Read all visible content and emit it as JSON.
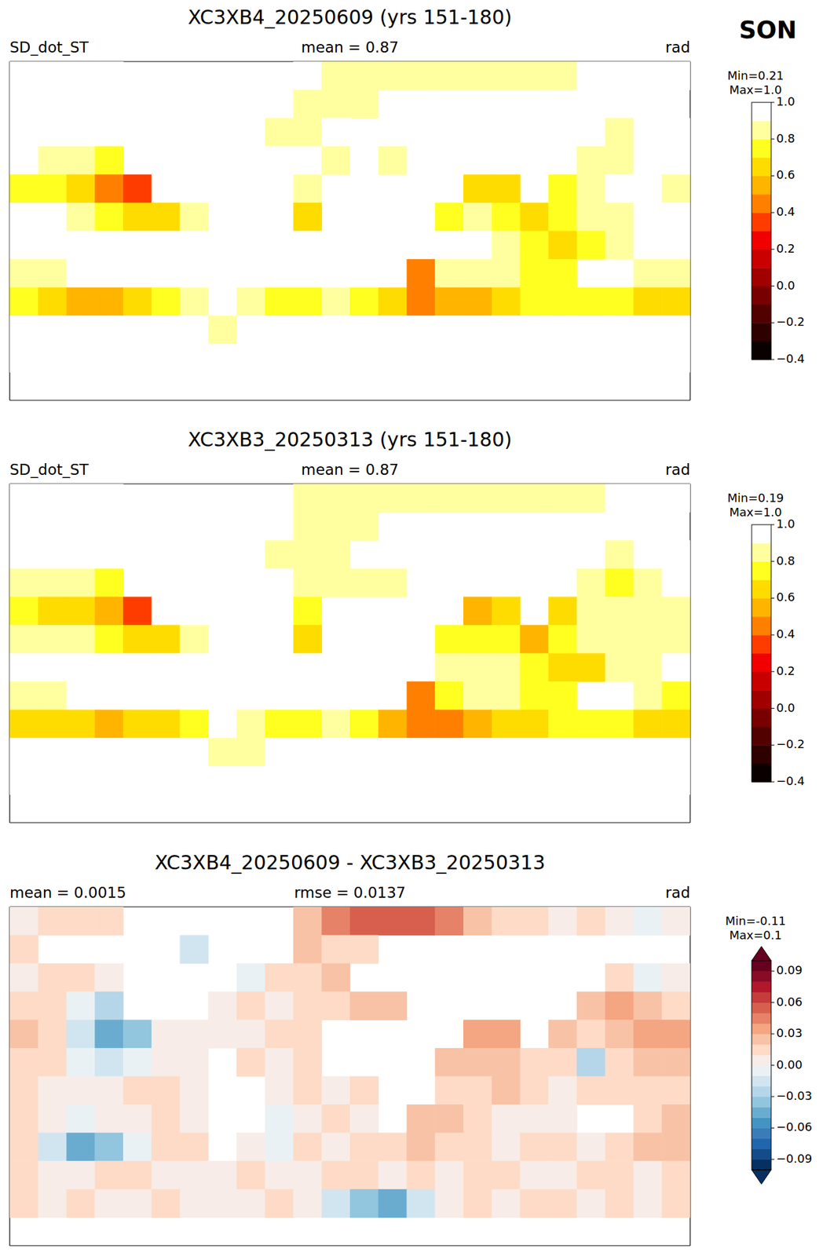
{
  "chart_data": [
    {
      "type": "heatmap",
      "annotation": "SON",
      "title": "XC3XB4_20250609 (yrs 151-180)",
      "subtitle_left": "SD_dot_ST",
      "subtitle_center": "mean = 0.87",
      "subtitle_right": "rad",
      "tick_labels": false,
      "xlim": [
        -180,
        180
      ],
      "ylim": [
        -90,
        90
      ],
      "x": [
        -172.5,
        -157.5,
        -142.5,
        -127.5,
        -112.5,
        -97.5,
        -82.5,
        -67.5,
        -52.5,
        -37.5,
        -22.5,
        -7.5,
        7.5,
        22.5,
        37.5,
        52.5,
        67.5,
        82.5,
        97.5,
        112.5,
        127.5,
        142.5,
        157.5,
        172.5
      ],
      "y": [
        82.5,
        67.5,
        52.5,
        37.5,
        22.5,
        7.5,
        -7.5,
        -22.5,
        -37.5,
        -52.5,
        -67.5,
        -82.5
      ],
      "cells": [
        [
          1.0,
          1.0,
          1.0,
          1.0,
          null,
          null,
          null,
          null,
          null,
          null,
          0.9,
          0.85,
          0.85,
          0.85,
          0.85,
          0.85,
          0.85,
          0.85,
          0.85,
          0.85,
          0.9,
          0.9,
          0.95,
          1.0
        ],
        [
          1.0,
          null,
          null,
          null,
          null,
          null,
          0.98,
          null,
          null,
          null,
          0.85,
          0.85,
          0.85,
          null,
          null,
          null,
          null,
          null,
          null,
          null,
          null,
          null,
          null,
          null
        ],
        [
          1.0,
          1.0,
          1.0,
          1.0,
          null,
          null,
          null,
          null,
          0.9,
          0.85,
          0.85,
          0.9,
          null,
          null,
          null,
          null,
          null,
          null,
          null,
          null,
          null,
          0.85,
          0.9,
          1.0
        ],
        [
          0.9,
          0.85,
          0.8,
          0.7,
          null,
          null,
          null,
          1.0,
          1.0,
          0.95,
          0.9,
          0.85,
          0.9,
          0.85,
          null,
          null,
          null,
          null,
          null,
          null,
          0.85,
          0.8,
          0.9,
          1.0
        ],
        [
          0.75,
          0.7,
          0.6,
          0.45,
          0.35,
          1.0,
          1.0,
          1.0,
          1.0,
          0.95,
          0.8,
          null,
          null,
          null,
          null,
          null,
          0.6,
          0.65,
          null,
          0.7,
          0.85,
          0.9,
          0.9,
          0.85
        ],
        [
          0.9,
          0.9,
          0.85,
          0.75,
          0.65,
          0.6,
          0.85,
          null,
          1.0,
          1.0,
          0.65,
          null,
          null,
          null,
          null,
          0.75,
          0.8,
          0.75,
          0.6,
          0.75,
          0.8,
          0.85,
          0.9,
          0.9
        ],
        [
          0.95,
          1.0,
          1.0,
          1.0,
          1.0,
          0.95,
          0.9,
          null,
          null,
          1.0,
          1.0,
          1.0,
          1.0,
          null,
          null,
          0.9,
          0.9,
          0.85,
          0.75,
          0.6,
          0.7,
          0.85,
          0.9,
          0.95
        ],
        [
          0.85,
          0.85,
          0.9,
          1.0,
          1.0,
          1.0,
          1.0,
          null,
          null,
          0.95,
          1.0,
          1.0,
          1.0,
          null,
          0.45,
          0.8,
          0.85,
          0.8,
          0.75,
          0.7,
          null,
          null,
          0.85,
          0.8
        ],
        [
          0.7,
          0.65,
          0.55,
          0.55,
          0.6,
          0.7,
          0.8,
          null,
          0.8,
          0.75,
          0.75,
          0.8,
          0.75,
          0.6,
          0.45,
          0.5,
          0.55,
          0.65,
          0.7,
          0.75,
          0.75,
          0.75,
          0.65,
          0.65
        ],
        [
          0.95,
          0.95,
          0.95,
          0.95,
          0.95,
          0.95,
          0.9,
          0.85,
          0.9,
          0.95,
          0.95,
          0.95,
          0.95,
          0.95,
          0.95,
          0.95,
          0.95,
          0.95,
          0.95,
          0.95,
          0.95,
          0.95,
          0.95,
          0.95
        ],
        [
          1.0,
          1.0,
          1.0,
          1.0,
          1.0,
          1.0,
          1.0,
          1.0,
          1.0,
          1.0,
          1.0,
          0.98,
          0.96,
          0.95,
          0.98,
          1.0,
          1.0,
          1.0,
          1.0,
          1.0,
          1.0,
          1.0,
          1.0,
          1.0
        ],
        [
          null,
          null,
          null,
          null,
          null,
          null,
          null,
          null,
          null,
          null,
          null,
          null,
          null,
          null,
          null,
          null,
          null,
          null,
          null,
          null,
          null,
          null,
          null,
          null
        ]
      ],
      "colorbar": {
        "range": [
          -0.4,
          1.0
        ],
        "min_label": "Min=0.21",
        "max_label": "Max=1.0",
        "ticks": [
          {
            "value": -0.4,
            "label": "−0.4"
          },
          {
            "value": -0.2,
            "label": "−0.2"
          },
          {
            "value": 0,
            "label": "0.0"
          },
          0.2,
          0.4,
          0.6,
          0.8,
          {
            "value": 1.0,
            "label": "1.0"
          }
        ],
        "colors": [
          "#0a0000",
          "#2e0000",
          "#520000",
          "#780000",
          "#a00000",
          "#c80000",
          "#f00000",
          "#ff3c00",
          "#ff8000",
          "#ffb400",
          "#ffdc00",
          "#ffff20",
          "#ffffa0",
          "#ffffff"
        ]
      }
    },
    {
      "type": "heatmap",
      "title": "XC3XB3_20250313 (yrs 151-180)",
      "subtitle_left": "SD_dot_ST",
      "subtitle_center": "mean = 0.87",
      "subtitle_right": "rad",
      "tick_labels": false,
      "xlim": [
        -180,
        180
      ],
      "ylim": [
        -90,
        90
      ],
      "x": [
        -172.5,
        -157.5,
        -142.5,
        -127.5,
        -112.5,
        -97.5,
        -82.5,
        -67.5,
        -52.5,
        -37.5,
        -22.5,
        -7.5,
        7.5,
        22.5,
        37.5,
        52.5,
        67.5,
        82.5,
        97.5,
        112.5,
        127.5,
        142.5,
        157.5,
        172.5
      ],
      "y": [
        82.5,
        67.5,
        52.5,
        37.5,
        22.5,
        7.5,
        -7.5,
        -22.5,
        -37.5,
        -52.5,
        -67.5,
        -82.5
      ],
      "cells": [
        [
          1.0,
          0.99,
          0.99,
          0.99,
          null,
          null,
          null,
          null,
          null,
          null,
          0.88,
          0.81,
          0.8,
          0.8,
          0.8,
          0.81,
          0.83,
          0.84,
          0.84,
          0.85,
          0.89,
          0.9,
          0.96,
          1.0
        ],
        [
          0.99,
          null,
          null,
          null,
          null,
          null,
          1.0,
          null,
          null,
          null,
          0.83,
          0.84,
          0.84,
          null,
          null,
          null,
          null,
          null,
          null,
          null,
          null,
          null,
          null,
          null
        ],
        [
          1.0,
          0.99,
          0.99,
          1.0,
          null,
          null,
          null,
          null,
          0.91,
          0.84,
          0.84,
          0.88,
          null,
          null,
          null,
          null,
          null,
          null,
          null,
          null,
          null,
          0.84,
          0.91,
          1.0
        ],
        [
          0.89,
          0.84,
          0.81,
          0.73,
          null,
          null,
          null,
          1.0,
          0.99,
          0.95,
          0.89,
          0.84,
          0.88,
          0.83,
          null,
          null,
          null,
          null,
          null,
          null,
          0.83,
          0.77,
          0.88,
          0.99
        ],
        [
          0.73,
          0.69,
          0.62,
          0.5,
          0.39,
          1.0,
          1.0,
          1.0,
          1.0,
          0.94,
          0.79,
          null,
          null,
          null,
          null,
          null,
          0.57,
          0.62,
          null,
          0.68,
          0.84,
          0.88,
          0.87,
          0.82
        ],
        [
          0.89,
          0.89,
          0.86,
          0.77,
          0.66,
          0.6,
          0.85,
          null,
          0.99,
          1.0,
          0.64,
          null,
          null,
          null,
          null,
          0.73,
          0.78,
          0.73,
          0.59,
          0.74,
          0.83,
          0.84,
          0.88,
          0.88
        ],
        [
          0.94,
          1.0,
          1.0,
          1.0,
          0.99,
          0.94,
          0.9,
          null,
          null,
          1.0,
          0.99,
          1.0,
          0.99,
          null,
          null,
          0.89,
          0.89,
          0.83,
          0.74,
          0.6,
          0.69,
          0.84,
          0.89,
          0.94
        ],
        [
          0.84,
          0.85,
          0.91,
          1.0,
          1.0,
          0.99,
          1.0,
          null,
          null,
          0.96,
          1.0,
          0.99,
          1.0,
          null,
          0.43,
          0.78,
          0.84,
          0.8,
          0.75,
          0.7,
          null,
          null,
          0.84,
          0.78
        ],
        [
          0.69,
          0.67,
          0.6,
          0.59,
          0.61,
          0.69,
          0.79,
          null,
          0.8,
          0.76,
          0.74,
          0.8,
          0.74,
          0.59,
          0.43,
          0.49,
          0.54,
          0.65,
          0.69,
          0.74,
          0.75,
          0.74,
          0.63,
          0.63
        ],
        [
          0.94,
          0.95,
          0.95,
          0.94,
          0.94,
          0.95,
          0.9,
          0.85,
          0.89,
          0.95,
          0.95,
          0.94,
          0.94,
          0.95,
          0.94,
          0.95,
          0.94,
          0.94,
          0.95,
          0.95,
          0.94,
          0.94,
          0.95,
          0.94
        ],
        [
          0.99,
          1.0,
          0.99,
          1.0,
          1.0,
          0.99,
          1.0,
          1.0,
          1.0,
          0.99,
          1.0,
          1.0,
          1.0,
          1.0,
          1.0,
          1.0,
          0.99,
          1.0,
          0.99,
          0.99,
          1.0,
          0.99,
          1.0,
          0.99
        ],
        [
          null,
          null,
          null,
          null,
          null,
          null,
          null,
          null,
          null,
          null,
          null,
          null,
          null,
          null,
          null,
          null,
          null,
          null,
          null,
          null,
          null,
          null,
          null,
          null
        ]
      ],
      "colorbar": {
        "range": [
          -0.4,
          1.0
        ],
        "min_label": "Min=0.19",
        "max_label": "Max=1.0",
        "ticks": [
          {
            "value": -0.4,
            "label": "−0.4"
          },
          {
            "value": -0.2,
            "label": "−0.2"
          },
          {
            "value": 0,
            "label": "0.0"
          },
          0.2,
          0.4,
          0.6,
          0.8,
          {
            "value": 1.0,
            "label": "1.0"
          }
        ],
        "colors": [
          "#0a0000",
          "#2e0000",
          "#520000",
          "#780000",
          "#a00000",
          "#c80000",
          "#f00000",
          "#ff3c00",
          "#ff8000",
          "#ffb400",
          "#ffdc00",
          "#ffff20",
          "#ffffa0",
          "#ffffff"
        ]
      }
    },
    {
      "type": "heatmap",
      "title": "XC3XB4_20250609 - XC3XB3_20250313",
      "subtitle_left": "mean = 0.0015",
      "subtitle_center": "rmse = 0.0137",
      "subtitle_right": "rad",
      "tick_labels": false,
      "xlim": [
        -180,
        180
      ],
      "ylim": [
        -90,
        90
      ],
      "x": [
        -172.5,
        -157.5,
        -142.5,
        -127.5,
        -112.5,
        -97.5,
        -82.5,
        -67.5,
        -52.5,
        -37.5,
        -22.5,
        -7.5,
        7.5,
        22.5,
        37.5,
        52.5,
        67.5,
        82.5,
        97.5,
        112.5,
        127.5,
        142.5,
        157.5,
        172.5
      ],
      "y": [
        82.5,
        67.5,
        52.5,
        37.5,
        22.5,
        7.5,
        -7.5,
        -22.5,
        -37.5,
        -52.5,
        -67.5,
        -82.5
      ],
      "cells": [
        [
          0.0,
          0.01,
          0.01,
          0.01,
          null,
          null,
          null,
          null,
          null,
          null,
          0.02,
          0.04,
          0.05,
          0.05,
          0.05,
          0.04,
          0.02,
          0.01,
          0.01,
          0.0,
          0.01,
          0.0,
          -0.01,
          0.0
        ],
        [
          0.01,
          null,
          null,
          null,
          null,
          null,
          -0.02,
          null,
          null,
          null,
          0.02,
          0.01,
          0.01,
          null,
          null,
          null,
          null,
          null,
          null,
          null,
          null,
          null,
          null,
          null
        ],
        [
          0.0,
          0.01,
          0.01,
          0.0,
          null,
          null,
          null,
          null,
          -0.01,
          0.01,
          0.01,
          0.02,
          null,
          null,
          null,
          null,
          null,
          null,
          null,
          null,
          null,
          0.01,
          -0.01,
          0.0
        ],
        [
          0.01,
          0.01,
          -0.01,
          -0.03,
          null,
          null,
          null,
          0.0,
          0.01,
          0.0,
          0.01,
          0.01,
          0.02,
          0.02,
          null,
          null,
          null,
          null,
          null,
          null,
          0.02,
          0.03,
          0.02,
          0.01
        ],
        [
          0.02,
          0.01,
          -0.02,
          -0.05,
          -0.04,
          0.0,
          0.0,
          0.0,
          0.0,
          0.01,
          0.01,
          null,
          null,
          null,
          null,
          null,
          0.03,
          0.03,
          null,
          0.02,
          0.01,
          0.02,
          0.03,
          0.03
        ],
        [
          0.01,
          0.01,
          -0.01,
          -0.02,
          -0.01,
          0.0,
          0.0,
          null,
          0.01,
          0.0,
          0.01,
          null,
          null,
          null,
          null,
          0.02,
          0.02,
          0.02,
          0.01,
          0.01,
          -0.03,
          0.01,
          0.02,
          0.02
        ],
        [
          0.01,
          0.0,
          0.0,
          0.0,
          0.01,
          0.01,
          0.0,
          null,
          null,
          0.0,
          0.01,
          0.0,
          0.01,
          null,
          null,
          0.01,
          0.01,
          0.02,
          0.01,
          0.0,
          0.01,
          0.01,
          0.01,
          0.01
        ],
        [
          0.01,
          0.0,
          -0.01,
          0.0,
          0.0,
          0.01,
          0.0,
          null,
          null,
          -0.01,
          0.0,
          0.01,
          0.0,
          null,
          0.02,
          0.02,
          0.01,
          0.0,
          0.0,
          0.0,
          null,
          null,
          0.01,
          0.02
        ],
        [
          0.01,
          -0.02,
          -0.05,
          -0.04,
          -0.01,
          0.01,
          0.01,
          null,
          0.0,
          -0.01,
          0.01,
          0.0,
          0.01,
          0.01,
          0.02,
          0.01,
          0.01,
          0.0,
          0.01,
          0.01,
          0.0,
          0.01,
          0.02,
          0.02
        ],
        [
          0.01,
          0.0,
          0.0,
          0.01,
          0.01,
          0.0,
          0.0,
          0.0,
          0.01,
          0.0,
          0.0,
          0.01,
          0.01,
          0.0,
          0.01,
          0.0,
          0.01,
          0.01,
          0.0,
          0.0,
          0.01,
          0.01,
          0.0,
          0.01
        ],
        [
          0.01,
          0.0,
          0.01,
          0.0,
          0.0,
          0.01,
          0.0,
          0.0,
          0.0,
          0.01,
          0.0,
          -0.02,
          -0.04,
          -0.05,
          -0.02,
          0.0,
          0.01,
          0.0,
          0.01,
          0.01,
          0.0,
          0.01,
          0.0,
          0.01
        ],
        [
          null,
          null,
          null,
          null,
          null,
          null,
          null,
          null,
          null,
          null,
          null,
          null,
          null,
          null,
          null,
          null,
          null,
          null,
          null,
          null,
          null,
          null,
          null,
          null
        ]
      ],
      "colorbar": {
        "range": [
          -0.1,
          0.1
        ],
        "min_label": "Min=-0.11",
        "max_label": "Max=0.1",
        "ticks": [
          {
            "value": -0.09,
            "label": "−0.09"
          },
          {
            "value": -0.06,
            "label": "−0.06"
          },
          {
            "value": -0.03,
            "label": "−0.03"
          },
          {
            "value": 0,
            "label": "0.00"
          },
          0.03,
          0.06,
          0.09
        ],
        "colors": [
          "#053061",
          "#134c87",
          "#2166ac",
          "#3a7bb8",
          "#4393c3",
          "#6aacd0",
          "#92c5de",
          "#b4d6e8",
          "#d1e5f0",
          "#eaf1f5",
          "#f7ece7",
          "#fddbc7",
          "#f8c2a6",
          "#f4a582",
          "#e58267",
          "#d6604d",
          "#c43c3c",
          "#b2182b",
          "#8a0b25",
          "#67001f"
        ]
      }
    }
  ]
}
